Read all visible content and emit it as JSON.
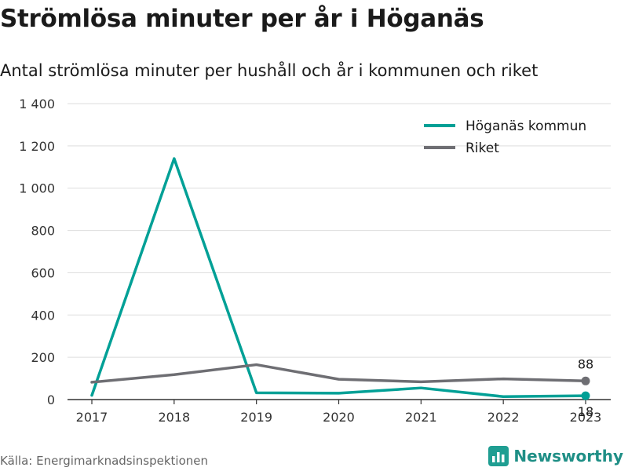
{
  "title": "Strömlösa minuter per år i Höganäs",
  "subtitle": "Antal strömlösa minuter per hushåll och år i kommunen och riket",
  "source": "Källa: Energimarknadsinspektionen",
  "brand": {
    "name": "Newsworthy",
    "icon": "bar-chart-logo-icon",
    "color": "#1f9e92"
  },
  "colors": {
    "hoganas": "#00a096",
    "riket": "#6e6e73",
    "grid": "#dddddd",
    "axis": "#333333"
  },
  "chart_data": {
    "type": "line",
    "title": "Strömlösa minuter per år i Höganäs",
    "subtitle": "Antal strömlösa minuter per hushåll och år i kommunen och riket",
    "xlabel": "",
    "ylabel": "",
    "x": [
      "2017",
      "2018",
      "2019",
      "2020",
      "2021",
      "2022",
      "2023"
    ],
    "ylim": [
      0,
      1400
    ],
    "yticks": [
      0,
      200,
      400,
      600,
      800,
      1000,
      1200,
      1400
    ],
    "ytick_labels": [
      "0",
      "200",
      "400",
      "600",
      "800",
      "1 000",
      "1 200",
      "1 400"
    ],
    "grid": true,
    "legend_position": "top-right",
    "series": [
      {
        "name": "Höganäs kommun",
        "color": "#00a096",
        "values": [
          20,
          1140,
          32,
          30,
          55,
          14,
          18
        ],
        "end_label": "18"
      },
      {
        "name": "Riket",
        "color": "#6e6e73",
        "values": [
          82,
          118,
          165,
          96,
          84,
          98,
          88
        ],
        "end_label": "88"
      }
    ]
  }
}
